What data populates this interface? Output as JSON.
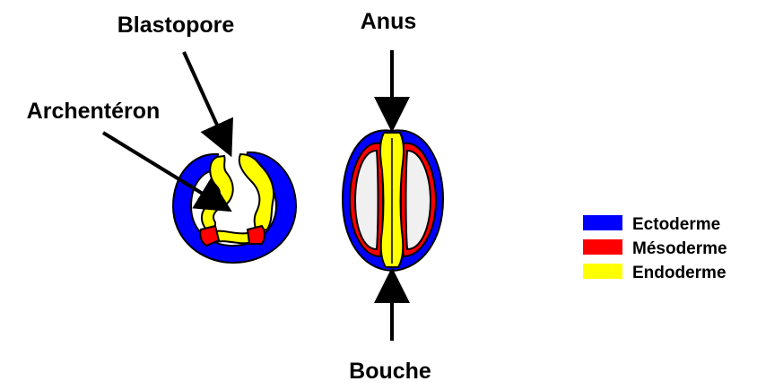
{
  "labels": {
    "blastopore": "Blastopore",
    "archenteron": "Archentéron",
    "anus": "Anus",
    "bouche": "Bouche"
  },
  "legend": {
    "items": [
      {
        "label": "Ectoderme",
        "color": "#0000ff"
      },
      {
        "label": "Mésoderme",
        "color": "#ff0000"
      },
      {
        "label": "Endoderme",
        "color": "#ffff00"
      }
    ]
  },
  "colors": {
    "ectoderm": "#0000ff",
    "mesoderm": "#ff0000",
    "endoderm": "#ffff00",
    "cavity": "#f0f0f0",
    "outline": "#000000"
  }
}
